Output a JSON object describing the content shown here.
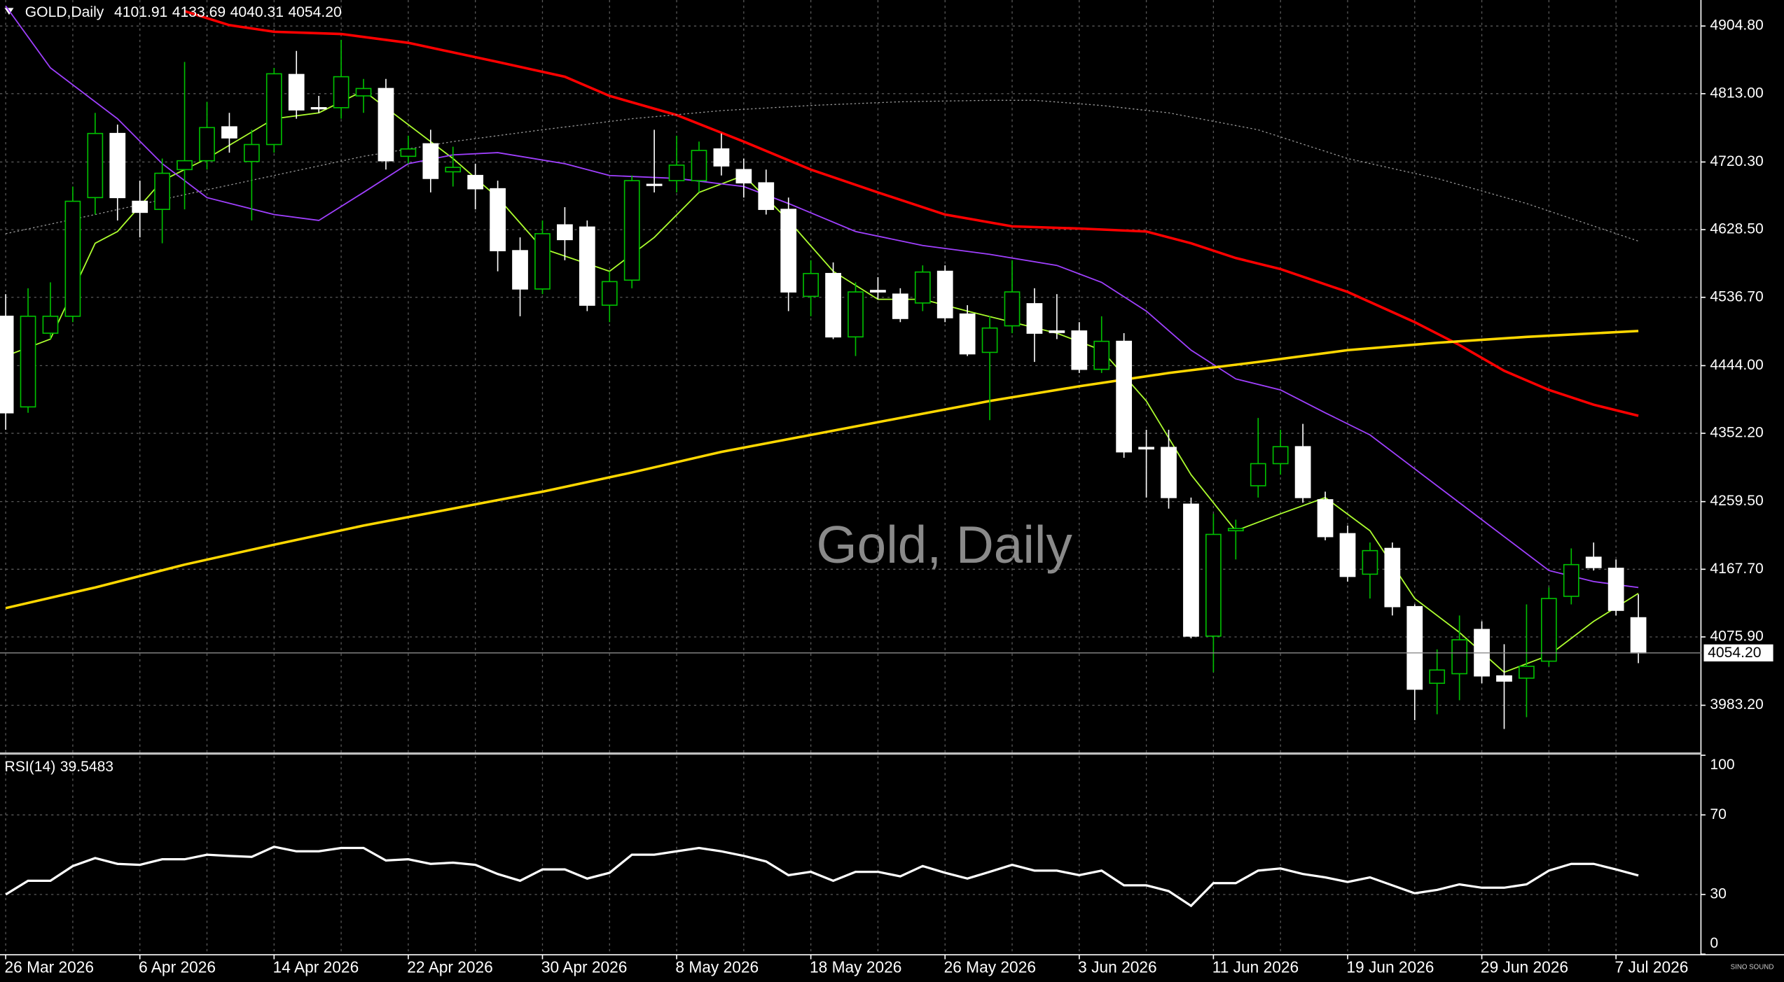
{
  "chart_data": [
    {
      "type": "candlestick",
      "header": {
        "symbol": "GOLD,Daily",
        "values": [
          4101.91,
          4133.69,
          4040.31,
          4054.2
        ],
        "value_labels": [
          "4101.91",
          "4133.69",
          "4040.31",
          "4054.20"
        ]
      },
      "watermark": "Gold, Daily",
      "categories": [
        "26 Mar 2026",
        null,
        null,
        null,
        null,
        null,
        "6 Apr 2026",
        null,
        null,
        null,
        null,
        null,
        "14 Apr 2026",
        null,
        null,
        null,
        null,
        null,
        "22 Apr 2026",
        null,
        null,
        null,
        null,
        null,
        "30 Apr 2026",
        null,
        null,
        null,
        null,
        null,
        "8 May 2026",
        null,
        null,
        null,
        null,
        null,
        "18 May 2026",
        null,
        null,
        null,
        null,
        null,
        "26 May 2026",
        null,
        null,
        null,
        null,
        null,
        "3 Jun 2026",
        null,
        null,
        null,
        null,
        null,
        "11 Jun 2026",
        null,
        null,
        null,
        null,
        null,
        "19 Jun 2026",
        null,
        null,
        null,
        null,
        null,
        "29 Jun 2026",
        null,
        null,
        null,
        null,
        null,
        "7 Jul 2026",
        null
      ],
      "open": [
        4511,
        4388,
        4488,
        4511,
        4672,
        4759,
        4667,
        4656,
        4710,
        4722,
        4768,
        4721,
        4744,
        4839,
        4794,
        4794,
        4810,
        4820,
        4728,
        4745,
        4707,
        4702,
        4684,
        4600,
        4548,
        4635,
        4632,
        4526,
        4560,
        4690,
        4695,
        4695,
        4738,
        4710,
        4692,
        4656,
        4538,
        4569,
        4483,
        4546,
        4541,
        4529,
        4572,
        4514,
        4462,
        4498,
        4528,
        4491,
        4491,
        4439,
        4477,
        4333,
        4333,
        4256,
        4077,
        4220,
        4281,
        4311,
        4334,
        4262,
        4216,
        4161,
        4196,
        4117,
        4013,
        4026,
        4086,
        4023,
        4020,
        4043,
        4131,
        4184,
        4169,
        4101.91
      ],
      "high": [
        4541,
        4549,
        4557,
        4687,
        4787,
        4771,
        4695,
        4725,
        4856,
        4802,
        4787,
        4764,
        4848,
        4871,
        4810,
        4886,
        4833,
        4833,
        4756,
        4764,
        4741,
        4718,
        4695,
        4618,
        4641,
        4659,
        4641,
        4572,
        4702,
        4764,
        4756,
        4748,
        4759,
        4725,
        4710,
        4672,
        4587,
        4584,
        4557,
        4564,
        4549,
        4580,
        4580,
        4526,
        4511,
        4587,
        4549,
        4541,
        4503,
        4511,
        4488,
        4357,
        4357,
        4265,
        4243,
        4235,
        4373,
        4357,
        4365,
        4273,
        4227,
        4204,
        4204,
        4120,
        4059,
        4105,
        4097,
        4066,
        4120,
        4143,
        4196,
        4204,
        4181,
        4133.69
      ],
      "low": [
        4357,
        4380,
        4480,
        4503,
        4649,
        4641,
        4618,
        4610,
        4656,
        4710,
        4733,
        4641,
        4733,
        4779,
        4787,
        4779,
        4787,
        4710,
        4718,
        4679,
        4687,
        4656,
        4572,
        4511,
        4541,
        4587,
        4518,
        4503,
        4549,
        4679,
        4679,
        4679,
        4702,
        4672,
        4649,
        4518,
        4511,
        4480,
        4457,
        4534,
        4503,
        4518,
        4503,
        4457,
        4370,
        4488,
        4449,
        4480,
        4434,
        4434,
        4319,
        4265,
        4250,
        4074,
        4028,
        4181,
        4265,
        4296,
        4258,
        4207,
        4151,
        4128,
        4105,
        3963,
        3971,
        3990,
        4013,
        3951,
        3967,
        4036,
        4120,
        4166,
        4105,
        4040.31
      ],
      "close": [
        4380,
        4511,
        4511,
        4667,
        4759,
        4672,
        4652,
        4705,
        4722,
        4767,
        4753,
        4744,
        4840,
        4791,
        4793,
        4836,
        4820,
        4722,
        4738,
        4698,
        4713,
        4684,
        4600,
        4548,
        4623,
        4615,
        4526,
        4558,
        4695,
        4689,
        4716,
        4736,
        4715,
        4692,
        4656,
        4544,
        4569,
        4483,
        4544,
        4544,
        4508,
        4571,
        4509,
        4460,
        4495,
        4544,
        4488,
        4489,
        4439,
        4477,
        4327,
        4331,
        4265,
        4077,
        4215,
        4223,
        4311,
        4334,
        4265,
        4212,
        4158,
        4193,
        4117,
        4005,
        4031,
        4072,
        4023,
        4016,
        4036,
        4128,
        4174,
        4170,
        4112,
        4054.2
      ],
      "up_color": "#00c000",
      "down_color": "#ffffff",
      "overlays": [
        {
          "color": "#adff2f",
          "style": "solid",
          "x": [
            0,
            2,
            4,
            5,
            7,
            9,
            12,
            14,
            16,
            18,
            20,
            22,
            24,
            27,
            29,
            31,
            33,
            35,
            37,
            39,
            41,
            43,
            45,
            47,
            49,
            51,
            53,
            55,
            57,
            59,
            61,
            63,
            65,
            67,
            69,
            71,
            73
          ],
          "values": [
            4457,
            4480,
            4610,
            4626,
            4695,
            4725,
            4779,
            4787,
            4817,
            4771,
            4725,
            4672,
            4603,
            4572,
            4618,
            4679,
            4702,
            4641,
            4572,
            4534,
            4534,
            4518,
            4503,
            4488,
            4465,
            4396,
            4296,
            4220,
            4243,
            4265,
            4220,
            4128,
            4082,
            4028,
            4051,
            4097,
            4135
          ]
        },
        {
          "color": "#a040ff",
          "style": "solid",
          "x": [
            0,
            2,
            5,
            7,
            9,
            12,
            14,
            16,
            18,
            20,
            22,
            25,
            27,
            30,
            33,
            35,
            38,
            41,
            44,
            47,
            49,
            51,
            53,
            55,
            57,
            59,
            61,
            63,
            65,
            67,
            69,
            71,
            73
          ],
          "values": [
            4932,
            4848,
            4779,
            4718,
            4672,
            4649,
            4641,
            4679,
            4718,
            4730,
            4733,
            4718,
            4702,
            4698,
            4687,
            4664,
            4626,
            4607,
            4595,
            4580,
            4557,
            4518,
            4465,
            4426,
            4411,
            4380,
            4350,
            4304,
            4258,
            4212,
            4166,
            4151,
            4143
          ]
        },
        {
          "color": "#ff0000",
          "style": "thick",
          "x": [
            8,
            10,
            12,
            15,
            18,
            22,
            25,
            27,
            30,
            33,
            36,
            39,
            42,
            45,
            48,
            51,
            53,
            55,
            57,
            60,
            63,
            65,
            67,
            69,
            71,
            73
          ],
          "values": [
            4925,
            4906,
            4897,
            4894,
            4882,
            4856,
            4836,
            4810,
            4784,
            4748,
            4710,
            4679,
            4649,
            4633,
            4630,
            4626,
            4610,
            4590,
            4575,
            4544,
            4503,
            4472,
            4437,
            4411,
            4391,
            4376
          ]
        },
        {
          "color": "#ffd700",
          "style": "thick",
          "x": [
            0,
            4,
            8,
            12,
            16,
            20,
            24,
            28,
            32,
            36,
            40,
            44,
            48,
            52,
            56,
            60,
            64,
            68,
            73
          ],
          "values": [
            4115,
            4143,
            4174,
            4201,
            4227,
            4250,
            4273,
            4299,
            4327,
            4350,
            4373,
            4396,
            4416,
            4434,
            4449,
            4465,
            4475,
            4483,
            4491
          ]
        },
        {
          "color": "#9a9a9a",
          "style": "dotted",
          "x": [
            0,
            4,
            8,
            12,
            16,
            20,
            24,
            28,
            32,
            36,
            40,
            44,
            46,
            49,
            52,
            56,
            60,
            64,
            68,
            73
          ],
          "values": [
            4623,
            4649,
            4676,
            4702,
            4728,
            4748,
            4764,
            4779,
            4790,
            4797,
            4802,
            4804,
            4804,
            4797,
            4787,
            4764,
            4725,
            4698,
            4664,
            4613
          ]
        }
      ],
      "ylim": [
        3919.2,
        4940.1
      ],
      "yticks": [
        {
          "value": 4904.8,
          "label": "4904.80"
        },
        {
          "value": 4813,
          "label": "4813.00"
        },
        {
          "value": 4720.3,
          "label": "4720.30"
        },
        {
          "value": 4628.5,
          "label": "4628.50"
        },
        {
          "value": 4536.7,
          "label": "4536.70"
        },
        {
          "value": 4444,
          "label": "4444.00"
        },
        {
          "value": 4352.2,
          "label": "4352.20"
        },
        {
          "value": 4259.5,
          "label": "4259.50"
        },
        {
          "value": 4167.7,
          "label": "4167.70"
        },
        {
          "value": 4075.9,
          "label": "4075.90"
        },
        {
          "value": 3983.2,
          "label": "3983.20"
        }
      ],
      "grid": true
    },
    {
      "type": "line",
      "title": "RSI(14)",
      "series": [
        {
          "color": "#ffffff",
          "values": [
            30,
            36.9,
            36.9,
            44.3,
            48.3,
            45.4,
            44.9,
            47.7,
            47.7,
            50,
            49.4,
            48.9,
            54,
            51.7,
            51.7,
            53.4,
            53.4,
            47.1,
            47.7,
            45.4,
            46,
            44.9,
            40.3,
            36.9,
            42.6,
            42.6,
            38,
            40.9,
            50,
            50,
            51.7,
            53.4,
            51.7,
            49.4,
            46.6,
            39.7,
            41.4,
            36.9,
            41.4,
            41.4,
            39.1,
            44.3,
            40.9,
            38,
            41.4,
            44.9,
            42,
            42,
            39.7,
            42,
            34.6,
            34.6,
            31.7,
            24.3,
            35.7,
            35.7,
            42,
            43.1,
            40.3,
            38.6,
            36.3,
            38.6,
            34.6,
            30.6,
            32.3,
            35.1,
            33.4,
            33.4,
            35.1,
            42,
            45.4,
            45.4,
            42.6,
            39.5483
          ]
        }
      ],
      "ylim": [
        0,
        100
      ],
      "yticks": [
        0,
        30,
        70,
        100
      ],
      "grid": true
    }
  ],
  "logo": "SINO SOUND"
}
